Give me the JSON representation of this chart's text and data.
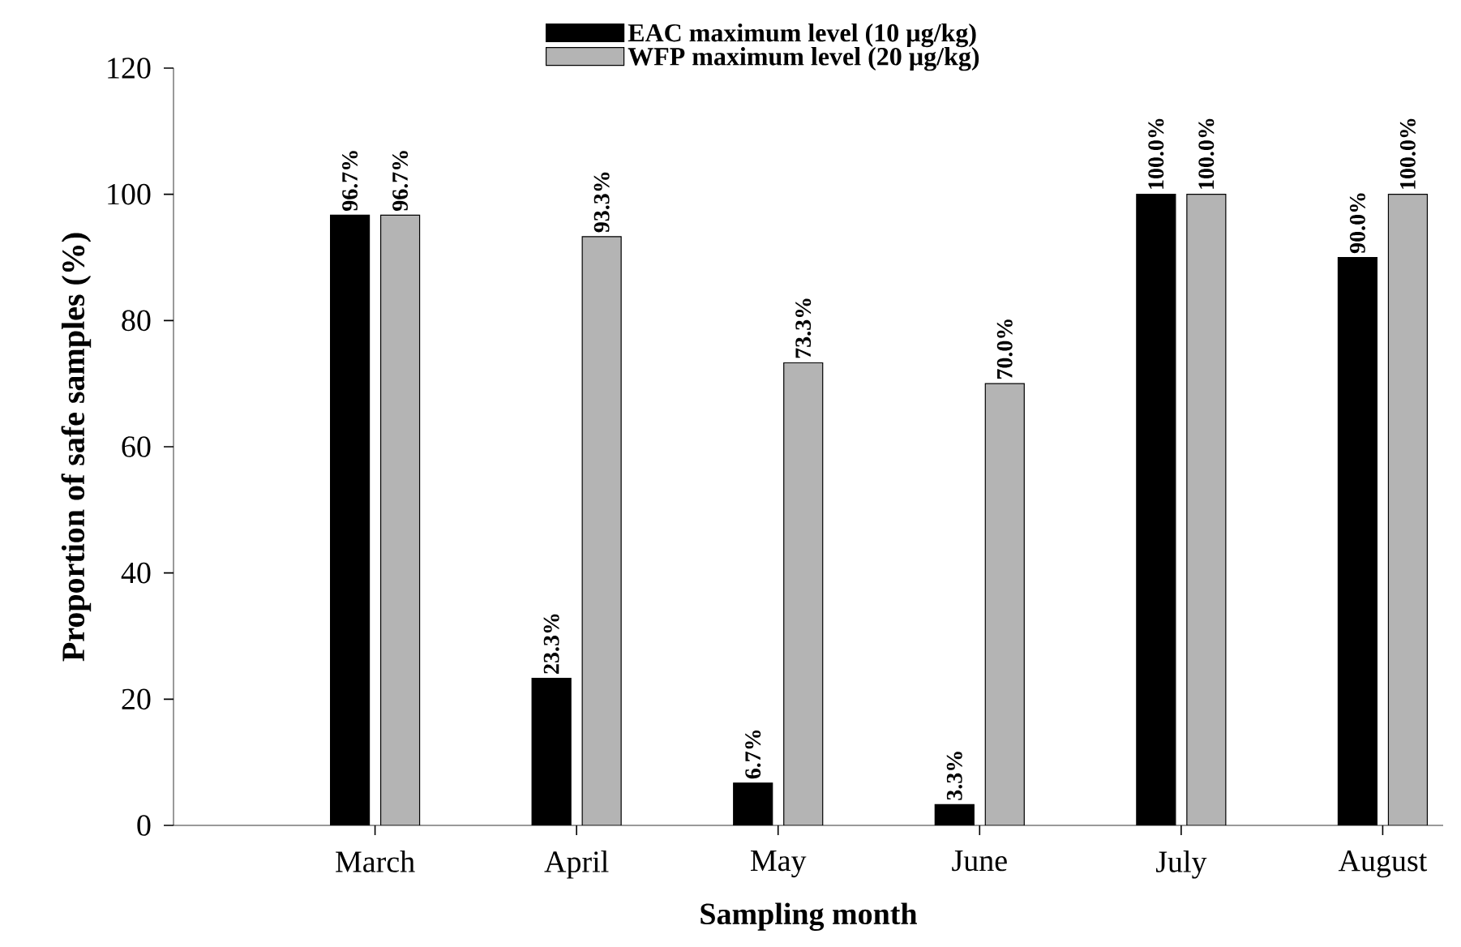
{
  "chart_data": {
    "type": "bar",
    "xlabel": "Sampling month",
    "ylabel": "Proportion of safe samples (%)",
    "categories": [
      "March",
      "April",
      "May",
      "June",
      "July",
      "August"
    ],
    "series": [
      {
        "name": "EAC maximum level (10 µg/kg)",
        "color": "#000000",
        "values": [
          96.7,
          23.3,
          6.7,
          3.3,
          100.0,
          90.0
        ],
        "value_labels": [
          "96.7%",
          "23.3%",
          "6.7%",
          "3.3%",
          "100.0%",
          "90.0%"
        ]
      },
      {
        "name": "WFP maximum level (20 µg/kg)",
        "color": "#b4b4b4",
        "values": [
          96.7,
          93.3,
          73.3,
          70.0,
          100.0,
          100.0
        ],
        "value_labels": [
          "96.7%",
          "93.3%",
          "73.3%",
          "70.0%",
          "100.0%",
          "100.0%"
        ]
      }
    ],
    "ylim": [
      0,
      120
    ],
    "yticks": [
      0,
      20,
      40,
      60,
      80,
      100,
      120
    ],
    "legend": "top",
    "grid": false
  }
}
